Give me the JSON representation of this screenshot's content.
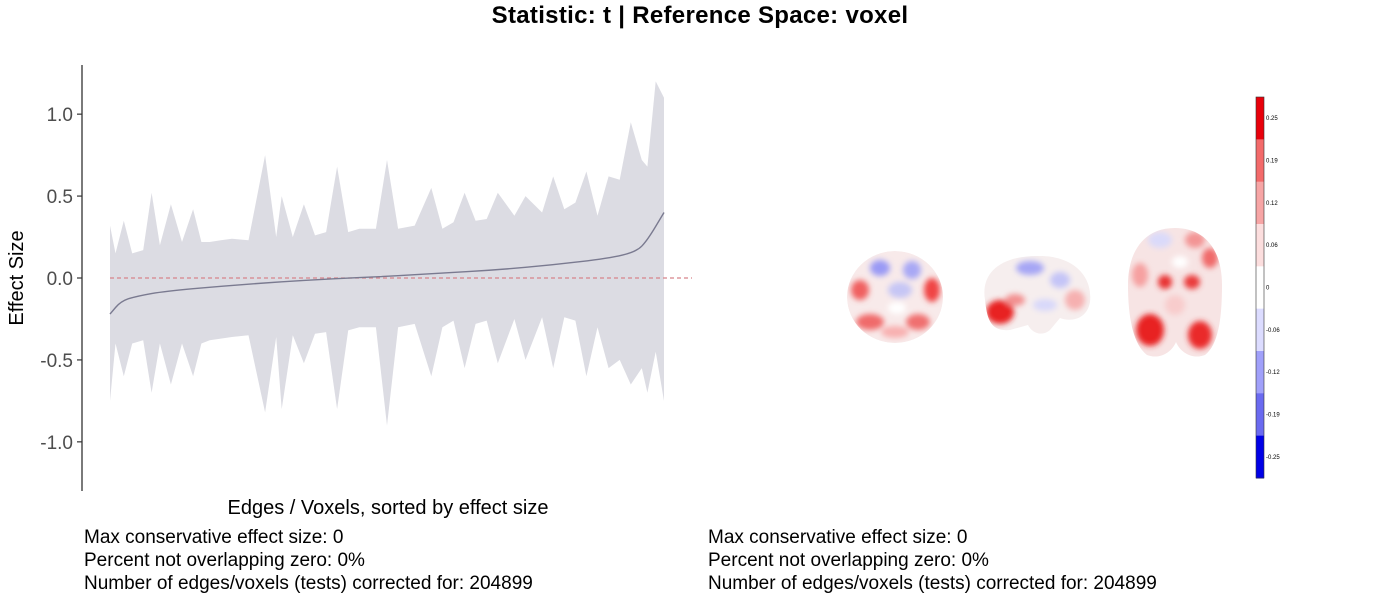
{
  "title": "Statistic: t   |  Reference Space: voxel",
  "chart_data": {
    "type": "area",
    "xlabel": "Edges / Voxels, sorted by effect size",
    "ylabel": "Effect Size",
    "ylim": [
      -1.3,
      1.3
    ],
    "yticks": [
      1.0,
      0.5,
      0.0,
      -0.5,
      -1.0
    ],
    "ytick_labels": [
      "1.0",
      "0.5",
      "0.0",
      "-0.5",
      "-1.0"
    ],
    "reference_line": {
      "y": 0,
      "color": "#d7848b",
      "style": "dashed"
    },
    "series": [
      {
        "type": "line",
        "color": "#7a7a90",
        "x": [
          0,
          0.02,
          0.05,
          0.1,
          0.2,
          0.3,
          0.4,
          0.5,
          0.6,
          0.7,
          0.8,
          0.9,
          0.95,
          0.97,
          1.0
        ],
        "values": [
          -0.22,
          -0.14,
          -0.11,
          -0.08,
          -0.05,
          -0.025,
          -0.005,
          0.01,
          0.03,
          0.05,
          0.08,
          0.12,
          0.16,
          0.23,
          0.4
        ]
      },
      {
        "type": "band",
        "color": "#dcdce3",
        "x": [
          0,
          0.01,
          0.025,
          0.04,
          0.06,
          0.075,
          0.09,
          0.11,
          0.13,
          0.15,
          0.165,
          0.18,
          0.2,
          0.22,
          0.25,
          0.28,
          0.3,
          0.31,
          0.33,
          0.35,
          0.37,
          0.39,
          0.41,
          0.43,
          0.45,
          0.48,
          0.5,
          0.52,
          0.55,
          0.58,
          0.6,
          0.62,
          0.64,
          0.66,
          0.68,
          0.7,
          0.73,
          0.75,
          0.78,
          0.8,
          0.82,
          0.84,
          0.86,
          0.88,
          0.9,
          0.92,
          0.94,
          0.96,
          0.97,
          0.985,
          1.0
        ],
        "upper": [
          0.32,
          0.15,
          0.35,
          0.15,
          0.17,
          0.52,
          0.2,
          0.45,
          0.22,
          0.42,
          0.22,
          0.22,
          0.23,
          0.24,
          0.23,
          0.75,
          0.25,
          0.5,
          0.25,
          0.45,
          0.26,
          0.28,
          0.68,
          0.28,
          0.3,
          0.3,
          0.72,
          0.3,
          0.32,
          0.55,
          0.3,
          0.34,
          0.52,
          0.35,
          0.36,
          0.52,
          0.38,
          0.5,
          0.4,
          0.62,
          0.42,
          0.46,
          0.65,
          0.38,
          0.62,
          0.6,
          0.95,
          0.72,
          0.68,
          1.2,
          1.1
        ],
        "lower": [
          -0.75,
          -0.4,
          -0.6,
          -0.4,
          -0.38,
          -0.7,
          -0.4,
          -0.65,
          -0.4,
          -0.6,
          -0.4,
          -0.38,
          -0.37,
          -0.36,
          -0.35,
          -0.82,
          -0.36,
          -0.8,
          -0.35,
          -0.52,
          -0.34,
          -0.33,
          -0.8,
          -0.32,
          -0.3,
          -0.3,
          -0.9,
          -0.3,
          -0.28,
          -0.6,
          -0.3,
          -0.26,
          -0.55,
          -0.28,
          -0.26,
          -0.52,
          -0.25,
          -0.5,
          -0.24,
          -0.55,
          -0.24,
          -0.26,
          -0.6,
          -0.3,
          -0.55,
          -0.5,
          -0.65,
          -0.55,
          -0.7,
          -0.45,
          -0.75
        ]
      }
    ]
  },
  "brain_map": {
    "colorbar": {
      "colors": [
        "#e8000b",
        "#f36a6a",
        "#f7a5a5",
        "#fcdede",
        "#ffffff",
        "#dcdcff",
        "#a0a0fa",
        "#6a6af0",
        "#0000e6"
      ],
      "labels": [
        "0.25",
        "0.19",
        "0.12",
        "0.06",
        "0",
        "-0.06",
        "-0.12",
        "-0.19",
        "-0.25"
      ]
    }
  },
  "stats_left": {
    "line1": "Max conservative effect size: 0",
    "line2": "Percent not overlapping zero: 0%",
    "line3": "Number of edges/voxels (tests) corrected for: 204899"
  },
  "stats_right": {
    "line1": "Max conservative effect size: 0",
    "line2": "Percent not overlapping zero: 0%",
    "line3": "Number of edges/voxels (tests) corrected for: 204899"
  }
}
